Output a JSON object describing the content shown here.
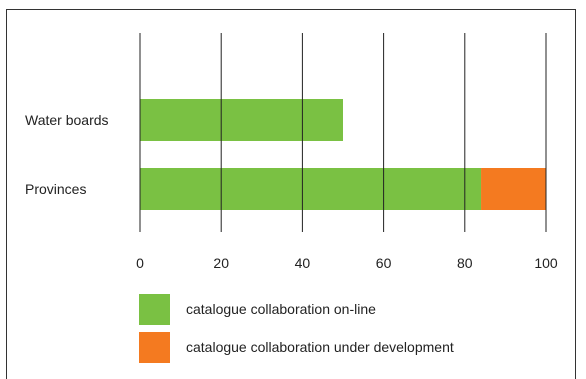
{
  "chart_data": {
    "type": "bar",
    "orientation": "horizontal",
    "stacked": true,
    "categories": [
      "Water boards",
      "Provinces"
    ],
    "series": [
      {
        "name": "catalogue collaboration on-line",
        "color": "#7ac143",
        "values": [
          50,
          84
        ]
      },
      {
        "name": "catalogue collaboration under development",
        "color": "#f47a20",
        "values": [
          0,
          16
        ]
      }
    ],
    "xlim": [
      0,
      100
    ],
    "xticks": [
      "0",
      "20",
      "40",
      "60",
      "80",
      "100"
    ],
    "grid": "vertical",
    "legend_position": "bottom"
  }
}
